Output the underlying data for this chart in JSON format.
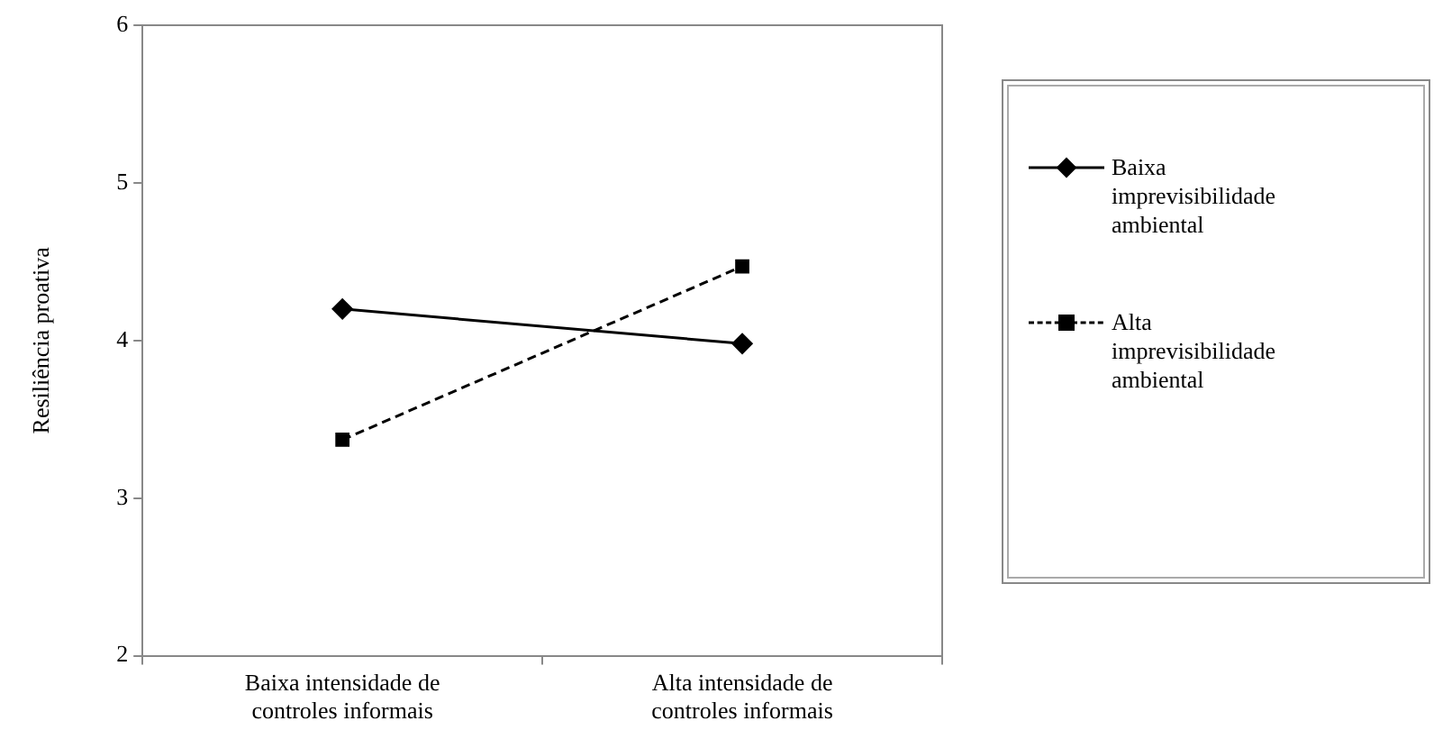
{
  "chart_data": {
    "type": "line",
    "ylabel": "Resiliência proativa",
    "categories": [
      "Baixa intensidade de controles informais",
      "Alta intensidade de controles informais"
    ],
    "series": [
      {
        "name": "Baixa imprevisibilidade ambiental",
        "color": "#000000",
        "values": [
          4.2,
          3.98
        ],
        "marker": "diamond",
        "line_style": "solid"
      },
      {
        "name": "Alta imprevisibilidade ambiental",
        "color": "#000000",
        "values": [
          3.37,
          4.47
        ],
        "marker": "square",
        "line_style": "dashed"
      }
    ],
    "ylim": [
      2,
      6
    ],
    "yticks": [
      2,
      3,
      4,
      5,
      6
    ],
    "grid": false,
    "legend": "right"
  }
}
